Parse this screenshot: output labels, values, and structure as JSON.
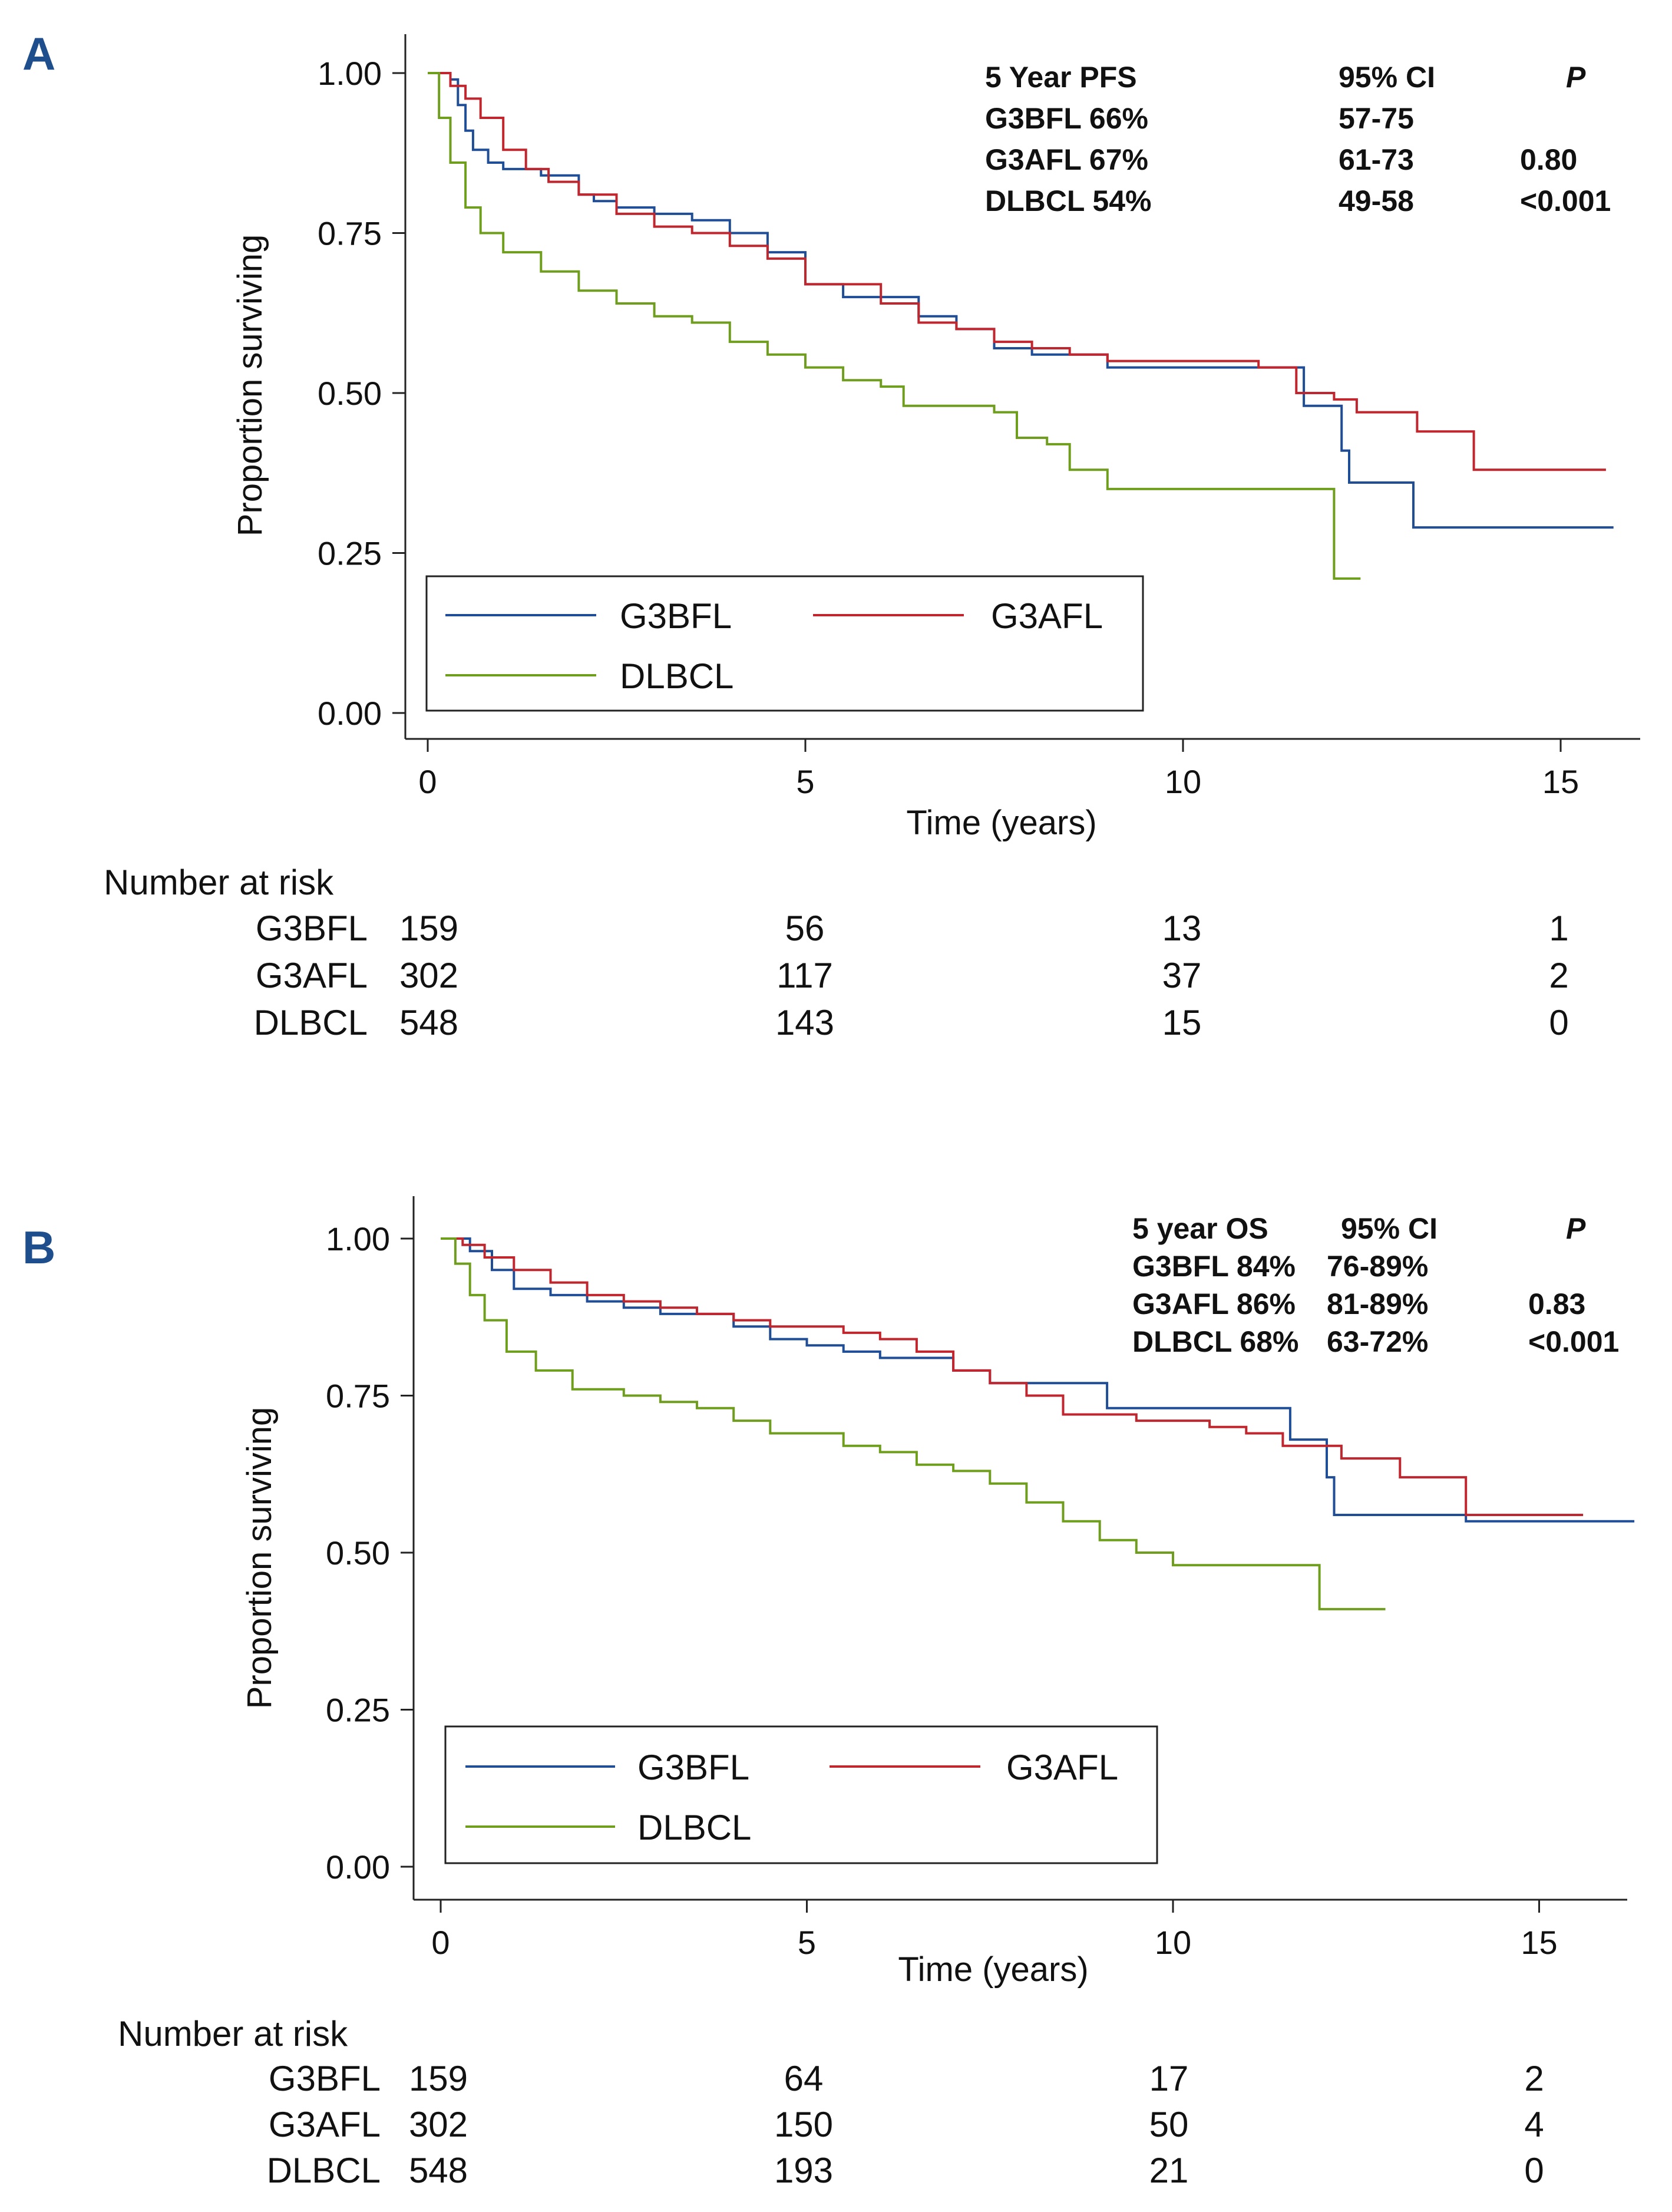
{
  "chart_data": [
    {
      "panel": "A",
      "type": "line",
      "xlabel": "Time (years)",
      "ylabel": "Proportion surviving",
      "xlim": [
        0,
        15.8
      ],
      "ylim": [
        0,
        1
      ],
      "xticks": [
        "0",
        "5",
        "10",
        "15"
      ],
      "yticks": [
        "0.00",
        "0.25",
        "0.50",
        "0.75",
        "1.00"
      ],
      "legend": [
        "G3BFL",
        "G3AFL",
        "DLBCL"
      ],
      "stats_table": {
        "headers": [
          "5 Year PFS",
          "95% CI",
          "P"
        ],
        "rows": [
          [
            "G3BFL 66%",
            "57-75",
            ""
          ],
          [
            "G3AFL 67%",
            "61-73",
            "0.80"
          ],
          [
            "DLBCL 54%",
            "49-58",
            "<0.001"
          ]
        ]
      },
      "risk_table": {
        "title": "Number at risk",
        "rows": [
          {
            "label": "G3BFL",
            "values": [
              "159",
              "56",
              "13",
              "1"
            ]
          },
          {
            "label": "G3AFL",
            "values": [
              "302",
              "117",
              "37",
              "2"
            ]
          },
          {
            "label": "DLBCL",
            "values": [
              "548",
              "143",
              "15",
              "0"
            ]
          }
        ]
      },
      "series": [
        {
          "name": "G3BFL",
          "color": "#1f4e96",
          "points": [
            [
              0,
              1.0
            ],
            [
              0.3,
              0.99
            ],
            [
              0.4,
              0.95
            ],
            [
              0.5,
              0.91
            ],
            [
              0.6,
              0.88
            ],
            [
              0.8,
              0.86
            ],
            [
              1.0,
              0.85
            ],
            [
              1.5,
              0.84
            ],
            [
              2.0,
              0.81
            ],
            [
              2.2,
              0.8
            ],
            [
              2.5,
              0.79
            ],
            [
              3.0,
              0.78
            ],
            [
              3.5,
              0.77
            ],
            [
              4.0,
              0.75
            ],
            [
              4.5,
              0.72
            ],
            [
              5.0,
              0.67
            ],
            [
              5.5,
              0.65
            ],
            [
              6.0,
              0.65
            ],
            [
              6.5,
              0.62
            ],
            [
              7.0,
              0.6
            ],
            [
              7.5,
              0.57
            ],
            [
              8.0,
              0.56
            ],
            [
              9.0,
              0.54
            ],
            [
              10.5,
              0.54
            ],
            [
              11.5,
              0.54
            ],
            [
              11.6,
              0.48
            ],
            [
              12.0,
              0.48
            ],
            [
              12.1,
              0.41
            ],
            [
              12.2,
              0.36
            ],
            [
              13.0,
              0.36
            ],
            [
              13.05,
              0.29
            ],
            [
              15.7,
              0.29
            ]
          ]
        },
        {
          "name": "G3AFL",
          "color": "#c0262d",
          "points": [
            [
              0,
              1.0
            ],
            [
              0.3,
              0.98
            ],
            [
              0.5,
              0.96
            ],
            [
              0.7,
              0.93
            ],
            [
              1.0,
              0.88
            ],
            [
              1.3,
              0.85
            ],
            [
              1.6,
              0.83
            ],
            [
              2.0,
              0.81
            ],
            [
              2.5,
              0.78
            ],
            [
              3.0,
              0.76
            ],
            [
              3.5,
              0.75
            ],
            [
              4.0,
              0.73
            ],
            [
              4.5,
              0.71
            ],
            [
              5.0,
              0.67
            ],
            [
              5.5,
              0.67
            ],
            [
              6.0,
              0.64
            ],
            [
              6.5,
              0.61
            ],
            [
              7.0,
              0.6
            ],
            [
              7.5,
              0.58
            ],
            [
              8.0,
              0.57
            ],
            [
              8.5,
              0.56
            ],
            [
              9.0,
              0.55
            ],
            [
              10.0,
              0.55
            ],
            [
              11.0,
              0.54
            ],
            [
              11.5,
              0.5
            ],
            [
              12.0,
              0.49
            ],
            [
              12.3,
              0.47
            ],
            [
              13.0,
              0.47
            ],
            [
              13.1,
              0.44
            ],
            [
              13.8,
              0.44
            ],
            [
              13.85,
              0.38
            ],
            [
              15.6,
              0.38
            ]
          ]
        },
        {
          "name": "DLBCL",
          "color": "#6f9e1e",
          "points": [
            [
              0,
              1.0
            ],
            [
              0.15,
              0.93
            ],
            [
              0.3,
              0.86
            ],
            [
              0.5,
              0.79
            ],
            [
              0.7,
              0.75
            ],
            [
              1.0,
              0.72
            ],
            [
              1.5,
              0.69
            ],
            [
              2.0,
              0.66
            ],
            [
              2.5,
              0.64
            ],
            [
              3.0,
              0.62
            ],
            [
              3.5,
              0.61
            ],
            [
              4.0,
              0.58
            ],
            [
              4.5,
              0.56
            ],
            [
              5.0,
              0.54
            ],
            [
              5.5,
              0.52
            ],
            [
              6.0,
              0.51
            ],
            [
              6.3,
              0.48
            ],
            [
              7.0,
              0.48
            ],
            [
              7.5,
              0.47
            ],
            [
              7.8,
              0.43
            ],
            [
              8.2,
              0.42
            ],
            [
              8.5,
              0.38
            ],
            [
              9.0,
              0.35
            ],
            [
              10.0,
              0.35
            ],
            [
              11.9,
              0.35
            ],
            [
              12.0,
              0.21
            ],
            [
              12.35,
              0.21
            ]
          ]
        }
      ]
    },
    {
      "panel": "B",
      "type": "line",
      "xlabel": "Time (years)",
      "ylabel": "Proportion surviving",
      "xlim": [
        0,
        16.3
      ],
      "ylim": [
        0,
        1
      ],
      "xticks": [
        "0",
        "5",
        "10",
        "15"
      ],
      "yticks": [
        "0.00",
        "0.25",
        "0.50",
        "0.75",
        "1.00"
      ],
      "legend": [
        "G3BFL",
        "G3AFL",
        "DLBCL"
      ],
      "stats_table": {
        "headers": [
          "5 year OS",
          "95% CI",
          "P"
        ],
        "rows": [
          [
            "G3BFL 84%",
            "76-89%",
            ""
          ],
          [
            "G3AFL 86%",
            "81-89%",
            "0.83"
          ],
          [
            "DLBCL 68%",
            "63-72%",
            "<0.001"
          ]
        ]
      },
      "risk_table": {
        "title": "Number at risk",
        "rows": [
          {
            "label": "G3BFL",
            "values": [
              "159",
              "64",
              "17",
              "2"
            ]
          },
          {
            "label": "G3AFL",
            "values": [
              "302",
              "150",
              "50",
              "4"
            ]
          },
          {
            "label": "DLBCL",
            "values": [
              "548",
              "193",
              "21",
              "0"
            ]
          }
        ]
      },
      "series": [
        {
          "name": "G3BFL",
          "color": "#1f4e96",
          "points": [
            [
              0,
              1.0
            ],
            [
              0.4,
              0.98
            ],
            [
              0.7,
              0.95
            ],
            [
              1.0,
              0.92
            ],
            [
              1.5,
              0.91
            ],
            [
              2.0,
              0.9
            ],
            [
              2.5,
              0.89
            ],
            [
              3.0,
              0.88
            ],
            [
              4.0,
              0.86
            ],
            [
              4.5,
              0.84
            ],
            [
              5.0,
              0.83
            ],
            [
              5.5,
              0.82
            ],
            [
              6.0,
              0.81
            ],
            [
              7.0,
              0.79
            ],
            [
              7.5,
              0.77
            ],
            [
              8.0,
              0.77
            ],
            [
              9.0,
              0.77
            ],
            [
              9.1,
              0.73
            ],
            [
              10.0,
              0.73
            ],
            [
              11.5,
              0.73
            ],
            [
              11.6,
              0.68
            ],
            [
              12.0,
              0.68
            ],
            [
              12.1,
              0.62
            ],
            [
              12.2,
              0.56
            ],
            [
              14.0,
              0.55
            ],
            [
              16.3,
              0.55
            ]
          ]
        },
        {
          "name": "G3AFL",
          "color": "#c0262d",
          "points": [
            [
              0,
              1.0
            ],
            [
              0.3,
              0.99
            ],
            [
              0.6,
              0.97
            ],
            [
              1.0,
              0.95
            ],
            [
              1.5,
              0.93
            ],
            [
              2.0,
              0.91
            ],
            [
              2.5,
              0.9
            ],
            [
              3.0,
              0.89
            ],
            [
              3.5,
              0.88
            ],
            [
              4.0,
              0.87
            ],
            [
              4.5,
              0.86
            ],
            [
              5.0,
              0.86
            ],
            [
              5.5,
              0.85
            ],
            [
              6.0,
              0.84
            ],
            [
              6.5,
              0.82
            ],
            [
              7.0,
              0.79
            ],
            [
              7.5,
              0.77
            ],
            [
              8.0,
              0.75
            ],
            [
              8.5,
              0.72
            ],
            [
              9.0,
              0.72
            ],
            [
              9.5,
              0.71
            ],
            [
              10.5,
              0.7
            ],
            [
              11.0,
              0.69
            ],
            [
              11.5,
              0.67
            ],
            [
              12.0,
              0.67
            ],
            [
              12.3,
              0.65
            ],
            [
              13.0,
              0.65
            ],
            [
              13.1,
              0.62
            ],
            [
              13.9,
              0.62
            ],
            [
              14.0,
              0.56
            ],
            [
              15.6,
              0.56
            ]
          ]
        },
        {
          "name": "DLBCL",
          "color": "#6f9e1e",
          "points": [
            [
              0,
              1.0
            ],
            [
              0.2,
              0.96
            ],
            [
              0.4,
              0.91
            ],
            [
              0.6,
              0.87
            ],
            [
              0.9,
              0.82
            ],
            [
              1.3,
              0.79
            ],
            [
              1.8,
              0.76
            ],
            [
              2.5,
              0.75
            ],
            [
              3.0,
              0.74
            ],
            [
              3.5,
              0.73
            ],
            [
              4.0,
              0.71
            ],
            [
              4.5,
              0.69
            ],
            [
              5.0,
              0.69
            ],
            [
              5.5,
              0.67
            ],
            [
              6.0,
              0.66
            ],
            [
              6.5,
              0.64
            ],
            [
              7.0,
              0.63
            ],
            [
              7.5,
              0.61
            ],
            [
              8.0,
              0.58
            ],
            [
              8.5,
              0.55
            ],
            [
              9.0,
              0.52
            ],
            [
              9.5,
              0.5
            ],
            [
              10.0,
              0.48
            ],
            [
              11.0,
              0.48
            ],
            [
              11.9,
              0.48
            ],
            [
              12.0,
              0.41
            ],
            [
              12.9,
              0.41
            ]
          ]
        }
      ]
    }
  ]
}
